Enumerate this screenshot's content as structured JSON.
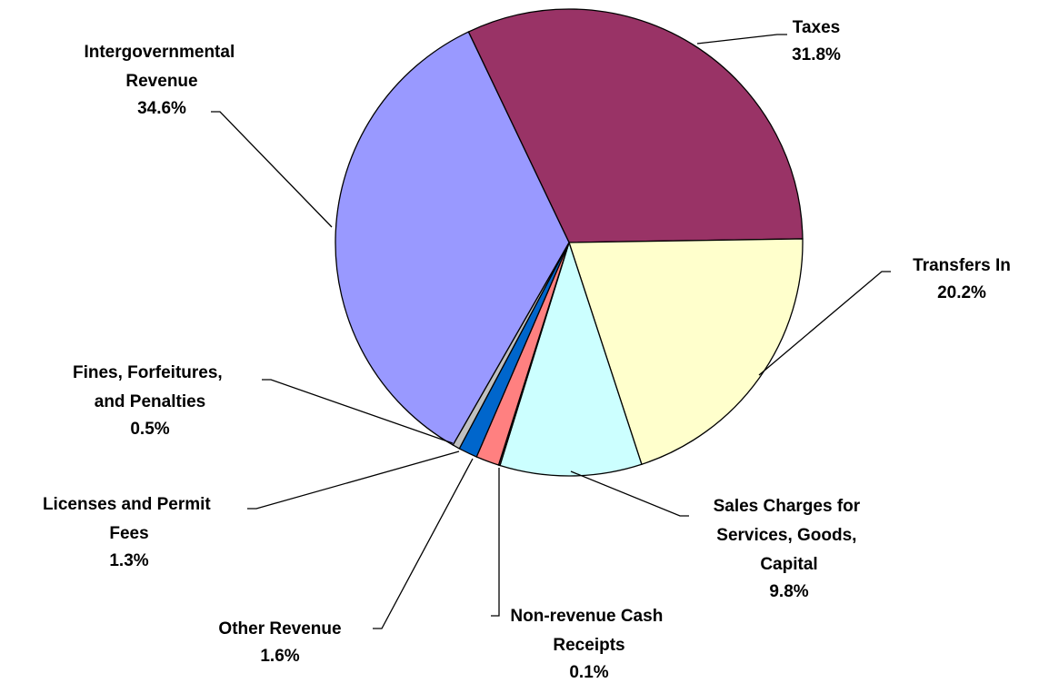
{
  "chart_data": {
    "type": "pie",
    "categories": [
      "Taxes",
      "Transfers In",
      "Sales Charges for Services, Goods, Capital",
      "Non-revenue Cash Receipts",
      "Other Revenue",
      "Licenses and Permit Fees",
      "Fines, Forfeitures, and Penalties",
      "Intergovernmental Revenue"
    ],
    "values": [
      31.8,
      20.2,
      9.8,
      0.1,
      1.6,
      1.3,
      0.5,
      34.6
    ],
    "value_labels": [
      "31.8%",
      "20.2%",
      "9.8%",
      "0.1%",
      "1.6%",
      "1.3%",
      "0.5%",
      "34.6%"
    ],
    "colors": [
      "#993366",
      "#FFFFCC",
      "#CCFFFF",
      "#993366",
      "#FF8080",
      "#0066CC",
      "#C0C0C0",
      "#9999FF"
    ]
  }
}
